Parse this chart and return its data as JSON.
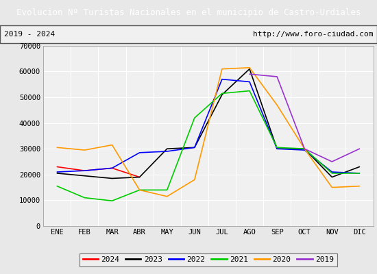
{
  "title": "Evolucion Nº Turistas Nacionales en el municipio de Castro-Urdiales",
  "subtitle_left": "2019 - 2024",
  "subtitle_right": "http://www.foro-ciudad.com",
  "title_bg": "#4f81bd",
  "title_color": "#ffffff",
  "months": [
    "ENE",
    "FEB",
    "MAR",
    "ABR",
    "MAY",
    "JUN",
    "JUL",
    "AGO",
    "SEP",
    "OCT",
    "NOV",
    "DIC"
  ],
  "ylim": [
    0,
    70000
  ],
  "yticks": [
    0,
    10000,
    20000,
    30000,
    40000,
    50000,
    60000,
    70000
  ],
  "series": {
    "2024": {
      "color": "#ff0000",
      "linewidth": 1.2,
      "data": [
        23000,
        21500,
        22500,
        19000,
        null,
        null,
        null,
        null,
        null,
        null,
        null,
        null
      ]
    },
    "2023": {
      "color": "#000000",
      "linewidth": 1.2,
      "data": [
        20500,
        19500,
        18500,
        19000,
        30000,
        30500,
        51000,
        61000,
        30000,
        30000,
        19000,
        23000
      ]
    },
    "2022": {
      "color": "#0000ff",
      "linewidth": 1.2,
      "data": [
        21000,
        21500,
        22500,
        28500,
        29000,
        30500,
        57000,
        56000,
        30000,
        29500,
        21000,
        20500
      ]
    },
    "2021": {
      "color": "#00cc00",
      "linewidth": 1.2,
      "data": [
        15500,
        11000,
        9800,
        14000,
        14000,
        42000,
        51500,
        52500,
        30500,
        30000,
        20500,
        20500
      ]
    },
    "2020": {
      "color": "#ff9900",
      "linewidth": 1.2,
      "data": [
        30500,
        29500,
        31500,
        14000,
        11500,
        18000,
        61000,
        61500,
        47000,
        30000,
        15000,
        15500
      ]
    },
    "2019": {
      "color": "#9933cc",
      "linewidth": 1.2,
      "data": [
        null,
        null,
        null,
        null,
        null,
        null,
        null,
        59000,
        58000,
        30000,
        25000,
        30000
      ]
    }
  },
  "legend_order": [
    "2024",
    "2023",
    "2022",
    "2021",
    "2020",
    "2019"
  ],
  "bg_color": "#e8e8e8",
  "plot_bg": "#f0f0f0",
  "grid_color": "#ffffff",
  "tick_fontsize": 7.5,
  "label_fontsize": 8
}
